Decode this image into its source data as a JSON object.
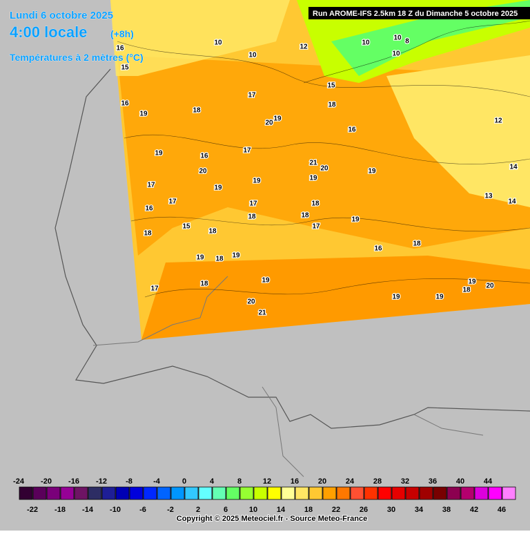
{
  "header": {
    "date": "Lundi 6 octobre 2025",
    "time": "4:00 locale",
    "offset": "(+8h)",
    "variable": "Températures à 2 mètres (°C)",
    "run": "Run AROME-IFS 2.5km 18 Z du Dimanche 5 octobre 2025"
  },
  "map": {
    "contour_labels": [
      16,
      15,
      16,
      19,
      10,
      10,
      12,
      17,
      18,
      20,
      19,
      18,
      16,
      15,
      10,
      10,
      8,
      10,
      12,
      14,
      13,
      14,
      19,
      16,
      20,
      17,
      21,
      20,
      19,
      19,
      19,
      19,
      17,
      17,
      16,
      17,
      18,
      18,
      18,
      17,
      19,
      15,
      18,
      18,
      16,
      18,
      19,
      18,
      19,
      19,
      18,
      17,
      20,
      21,
      19,
      19,
      19,
      18,
      20
    ]
  },
  "legend": {
    "values": [
      -24,
      -22,
      -20,
      -18,
      -16,
      -14,
      -12,
      -10,
      -8,
      -6,
      -4,
      -2,
      0,
      2,
      4,
      6,
      8,
      10,
      12,
      14,
      16,
      18,
      20,
      22,
      24,
      26,
      28,
      30,
      32,
      34,
      36,
      38,
      40,
      42,
      44,
      46
    ],
    "colors": [
      "#320032",
      "#5a005a",
      "#7a007a",
      "#960096",
      "#6e1464",
      "#2d2d64",
      "#1e1e96",
      "#0000b4",
      "#0000dc",
      "#0028ff",
      "#0064ff",
      "#0096ff",
      "#32c8ff",
      "#64ffff",
      "#64ffb4",
      "#64ff64",
      "#96ff32",
      "#c8ff00",
      "#ffff00",
      "#ffff96",
      "#ffe664",
      "#ffc832",
      "#ffa000",
      "#ff7800",
      "#ff5032",
      "#ff3200",
      "#ff0000",
      "#e60000",
      "#c80000",
      "#a00000",
      "#780000",
      "#8c0050",
      "#b4006e",
      "#dc00dc",
      "#ff00ff",
      "#ff80ff"
    ]
  },
  "footer": {
    "copyright": "Copyright © 2025 Meteociel.fr - Source Meteo-France"
  }
}
